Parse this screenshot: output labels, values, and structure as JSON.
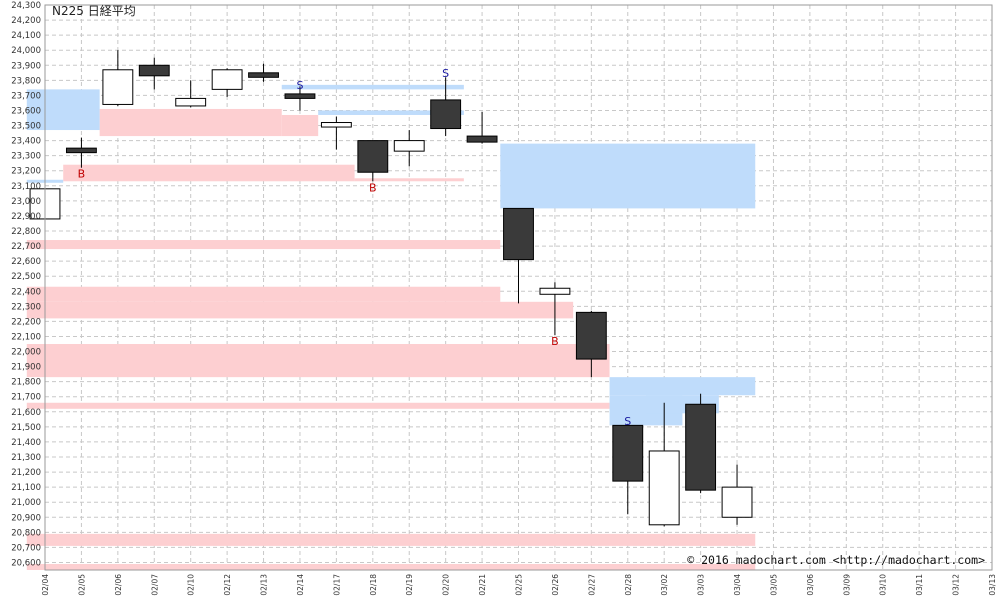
{
  "title": "N225 日経平均",
  "copyright": "© 2016 madochart.com <http://madochart.com>",
  "colors": {
    "up_fill": "#ffffff",
    "down_fill": "#3a3a3a",
    "outline": "#000000",
    "resistance_zone": "#bfdcfb",
    "support_zone": "#fdcfd1",
    "grid": "#c8c8c8",
    "sell_signal": "#1a1aa0",
    "buy_signal": "#c00000"
  },
  "chart_data": {
    "type": "candlestick",
    "ylim": [
      20550,
      24300
    ],
    "y_ticks": [
      "20,600",
      "20,700",
      "20,800",
      "20,900",
      "21,000",
      "21,100",
      "21,200",
      "21,300",
      "21,400",
      "21,500",
      "21,600",
      "21,700",
      "21,800",
      "21,900",
      "22,000",
      "22,100",
      "22,200",
      "22,300",
      "22,400",
      "22,500",
      "22,600",
      "22,700",
      "22,800",
      "22,900",
      "23,000",
      "23,100",
      "23,200",
      "23,300",
      "23,400",
      "23,500",
      "23,600",
      "23,700",
      "23,800",
      "23,900",
      "24,000",
      "24,100",
      "24,200",
      "24,300"
    ],
    "x_labels": [
      "02/04",
      "02/05",
      "02/06",
      "02/07",
      "02/10",
      "02/12",
      "02/13",
      "02/14",
      "02/17",
      "02/18",
      "02/19",
      "02/20",
      "02/21",
      "02/25",
      "02/26",
      "02/27",
      "02/28",
      "03/02",
      "03/03",
      "03/04",
      "03/05",
      "03/06",
      "03/09",
      "03/10",
      "03/11",
      "03/12",
      "03/13"
    ],
    "candles": [
      {
        "date": "02/04",
        "open": 22880,
        "high": 23090,
        "low": 22880,
        "close": 23080
      },
      {
        "date": "02/05",
        "open": 23350,
        "high": 23420,
        "low": 23220,
        "close": 23320
      },
      {
        "date": "02/06",
        "open": 23640,
        "high": 24000,
        "low": 23630,
        "close": 23870
      },
      {
        "date": "02/07",
        "open": 23900,
        "high": 23950,
        "low": 23740,
        "close": 23830
      },
      {
        "date": "02/10",
        "open": 23630,
        "high": 23800,
        "low": 23620,
        "close": 23680
      },
      {
        "date": "02/12",
        "open": 23740,
        "high": 23880,
        "low": 23690,
        "close": 23870
      },
      {
        "date": "02/13",
        "open": 23850,
        "high": 23910,
        "low": 23790,
        "close": 23820
      },
      {
        "date": "02/14",
        "open": 23710,
        "high": 23760,
        "low": 23600,
        "close": 23680
      },
      {
        "date": "02/17",
        "open": 23490,
        "high": 23560,
        "low": 23340,
        "close": 23520
      },
      {
        "date": "02/18",
        "open": 23400,
        "high": 23400,
        "low": 23130,
        "close": 23190
      },
      {
        "date": "02/19",
        "open": 23330,
        "high": 23470,
        "low": 23230,
        "close": 23400
      },
      {
        "date": "02/20",
        "open": 23670,
        "high": 23820,
        "low": 23430,
        "close": 23480
      },
      {
        "date": "02/21",
        "open": 23430,
        "high": 23590,
        "low": 23380,
        "close": 23390
      },
      {
        "date": "02/25",
        "open": 22950,
        "high": 22950,
        "low": 22320,
        "close": 22610
      },
      {
        "date": "02/26",
        "open": 22380,
        "high": 22460,
        "low": 22110,
        "close": 22420
      },
      {
        "date": "02/27",
        "open": 22260,
        "high": 22270,
        "low": 21830,
        "close": 21950
      },
      {
        "date": "02/28",
        "open": 21510,
        "high": 21520,
        "low": 20920,
        "close": 21140
      },
      {
        "date": "03/02",
        "open": 20850,
        "high": 21660,
        "low": 20840,
        "close": 21340
      },
      {
        "date": "03/03",
        "open": 21650,
        "high": 21720,
        "low": 21060,
        "close": 21080
      },
      {
        "date": "03/04",
        "open": 20900,
        "high": 21250,
        "low": 20850,
        "close": 21100
      }
    ],
    "resistance_zones": [
      {
        "start": "02/04",
        "end": "02/05",
        "low": 23470,
        "high": 23740
      },
      {
        "start": "02/14",
        "end": "02/20",
        "low": 23740,
        "high": 23770
      },
      {
        "start": "02/17",
        "end": "02/20",
        "low": 23570,
        "high": 23600
      },
      {
        "start": "02/04",
        "end": "02/04",
        "low": 23120,
        "high": 23140
      },
      {
        "start": "02/25",
        "end": "03/04",
        "low": 22950,
        "high": 23380
      },
      {
        "start": "02/28",
        "end": "03/04",
        "low": 21710,
        "high": 21830
      },
      {
        "start": "02/28",
        "end": "03/02",
        "low": 21510,
        "high": 21710
      },
      {
        "start": "03/02",
        "end": "03/03",
        "low": 21590,
        "high": 21710
      }
    ],
    "support_zones": [
      {
        "start": "02/06",
        "end": "02/13",
        "low": 23430,
        "high": 23610
      },
      {
        "start": "02/14",
        "end": "02/14",
        "low": 23430,
        "high": 23570
      },
      {
        "start": "02/05",
        "end": "02/17",
        "low": 23130,
        "high": 23240
      },
      {
        "start": "02/18",
        "end": "02/20",
        "low": 23130,
        "high": 23150
      },
      {
        "start": "02/04",
        "end": "02/21",
        "low": 22680,
        "high": 22740
      },
      {
        "start": "02/04",
        "end": "02/21",
        "low": 22330,
        "high": 22430
      },
      {
        "start": "02/04",
        "end": "02/26",
        "low": 22220,
        "high": 22330
      },
      {
        "start": "02/04",
        "end": "02/27",
        "low": 21830,
        "high": 22050
      },
      {
        "start": "02/04",
        "end": "02/27",
        "low": 21620,
        "high": 21660
      },
      {
        "start": "02/04",
        "end": "03/04",
        "low": 20710,
        "high": 20790
      },
      {
        "start": "02/04",
        "end": "03/04",
        "low": 20550,
        "high": 20590
      }
    ],
    "signals": [
      {
        "date": "02/05",
        "type": "B",
        "price": 23180
      },
      {
        "date": "02/14",
        "type": "S",
        "price": 23770
      },
      {
        "date": "02/18",
        "type": "B",
        "price": 23090
      },
      {
        "date": "02/20",
        "type": "S",
        "price": 23850
      },
      {
        "date": "02/26",
        "type": "B",
        "price": 22070
      },
      {
        "date": "02/28",
        "type": "S",
        "price": 21540
      }
    ]
  }
}
